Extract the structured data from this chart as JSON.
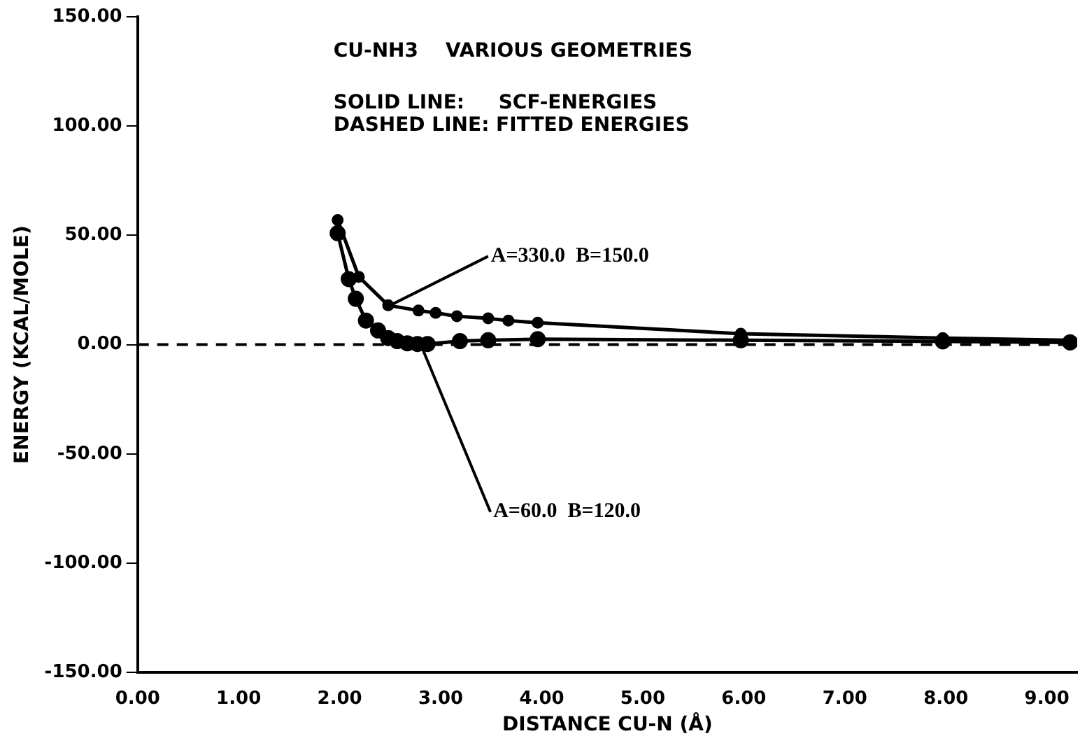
{
  "chart_data": {
    "type": "line",
    "title": "CU-NH3    VARIOUS GEOMETRIES",
    "xlabel": "DISTANCE CU-N (Å)",
    "ylabel": "ENERGY (KCAL/MOLE)",
    "annotations": [
      "SOLID LINE:     SCF-ENERGIES",
      "DASHED LINE: FITTED ENERGIES",
      {
        "text": "A=330.0  B=150.0",
        "x": 2.5,
        "y": 18
      },
      {
        "text": "A=60.0  B=120.0",
        "x": 2.8,
        "y": 0.3
      }
    ],
    "series": [
      {
        "color": "#000000",
        "x": [
          1.98,
          2.19,
          2.48,
          2.78,
          2.95,
          3.16,
          3.47,
          3.67,
          3.96,
          5.97,
          7.97,
          9.23
        ],
        "values": [
          57,
          31,
          18,
          15.6,
          14.5,
          13,
          12,
          11,
          10,
          5,
          3,
          2
        ]
      },
      {
        "color": "#000000",
        "x": [
          1.98,
          2.09,
          2.16,
          2.26,
          2.38,
          2.48,
          2.57,
          2.67,
          2.77,
          2.87,
          3.19,
          3.47,
          3.96,
          5.97,
          7.97,
          9.23
        ],
        "values": [
          51,
          30,
          21,
          11,
          6.5,
          3,
          1.6,
          0.6,
          0.3,
          0.3,
          1.6,
          2,
          2.5,
          2,
          1.5,
          1
        ]
      }
    ],
    "ref_lines": [
      {
        "axis": "y",
        "value": 0,
        "color": "#000000",
        "line_style": "dashed"
      }
    ],
    "xlim": [
      0,
      9.3
    ],
    "xticks": [
      {
        "value": 0,
        "label": "0.00"
      },
      {
        "value": 1,
        "label": "1.00"
      },
      {
        "value": 2,
        "label": "2.00"
      },
      {
        "value": 3,
        "label": "3.00"
      },
      {
        "value": 4,
        "label": "4.00"
      },
      {
        "value": 5,
        "label": "5.00"
      },
      {
        "value": 6,
        "label": "6.00"
      },
      {
        "value": 7,
        "label": "7.00"
      },
      {
        "value": 8,
        "label": "8.00"
      },
      {
        "value": 9,
        "label": "9.00"
      }
    ],
    "ylim": [
      -150,
      150
    ],
    "yticks": [
      {
        "value": -150,
        "label": "-150.00"
      },
      {
        "value": -100,
        "label": "-100.00"
      },
      {
        "value": -50,
        "label": "-50.00"
      },
      {
        "value": 0,
        "label": "0.00"
      },
      {
        "value": 50,
        "label": "50.00"
      },
      {
        "value": 100,
        "label": "100.00"
      },
      {
        "value": 150,
        "label": "150.00"
      }
    ],
    "grid": false,
    "legend": false,
    "marker": "circle",
    "line_style": "solid"
  }
}
